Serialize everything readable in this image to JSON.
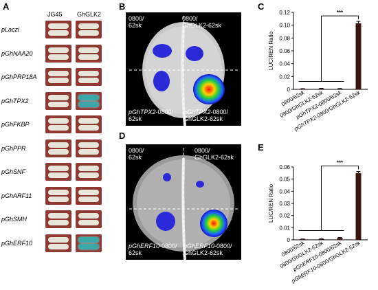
{
  "panelA": {
    "letter": "A",
    "col1": "JG45",
    "col2": "GhGLK2",
    "rows": [
      {
        "gene": "pLaczi",
        "blue": false
      },
      {
        "gene": "pGhNAA20",
        "blue": false
      },
      {
        "gene": "pGhPRP18A",
        "blue": false
      },
      {
        "gene": "pGhTPX2",
        "blue": true
      },
      {
        "gene": "pGhFKBP",
        "blue": false
      },
      {
        "gene": "pGhPPR",
        "blue": false
      },
      {
        "gene": "pGhSNF",
        "blue": false
      },
      {
        "gene": "pGhARF11",
        "blue": false
      },
      {
        "gene": "pGhSMH",
        "blue": false
      },
      {
        "gene": "pGhERF10",
        "blue": true
      }
    ]
  },
  "panelB": {
    "letter": "B",
    "tl": "0800/\n62sk",
    "tr": "0800/\nGhGLK2-62sk",
    "bl_gene": "pGhTPX2",
    "bl_rest": "-0800/\n62sk",
    "br_gene": "pGhTPX2",
    "br_rest": "-0800/\nGhGLK2-62sk"
  },
  "panelD": {
    "letter": "D",
    "tl": "0800/\n62sk",
    "tr": "0800/\nGhGLK2-62sk",
    "bl_gene": "pGhERF10",
    "bl_rest": "-0800/\n62sk",
    "br_gene": "pGhERF10",
    "br_rest": "-0800/\nGhGLK2-62sk"
  },
  "chart_data": [
    {
      "panel": "C",
      "type": "bar",
      "ylabel": "LUC/REN Ratio",
      "ylim": [
        0,
        0.12
      ],
      "yticks": [
        "0",
        "0.02",
        "0.04",
        "0.06",
        "0.08",
        "0.10",
        "0.12"
      ],
      "categories": [
        "0800/62sk",
        "0800/GhGLK2-62sk",
        "pGhTPX2-0800/62sk",
        "pGhTPX2-0800/GhGLK2-62sk"
      ],
      "values": [
        0.0008,
        0.0012,
        0.001,
        0.103
      ],
      "errors": [
        0.0003,
        0.0004,
        0.0003,
        0.003
      ],
      "significance": "***"
    },
    {
      "panel": "E",
      "type": "bar",
      "ylabel": "LUC/REN Ratio",
      "ylim": [
        0,
        0.06
      ],
      "yticks": [
        "0",
        "0.01",
        "0.02",
        "0.03",
        "0.04",
        "0.05",
        "0.06"
      ],
      "categories": [
        "0800/62sk",
        "0800/GhGLK2-62sk",
        "pGhERF10-0800/62sk",
        "pGhERF10-0800/GhGLK2-62sk"
      ],
      "values": [
        0.0005,
        0.0007,
        0.0016,
        0.055
      ],
      "errors": [
        0.0002,
        0.0002,
        0.0004,
        0.0013
      ],
      "significance": "***"
    }
  ]
}
